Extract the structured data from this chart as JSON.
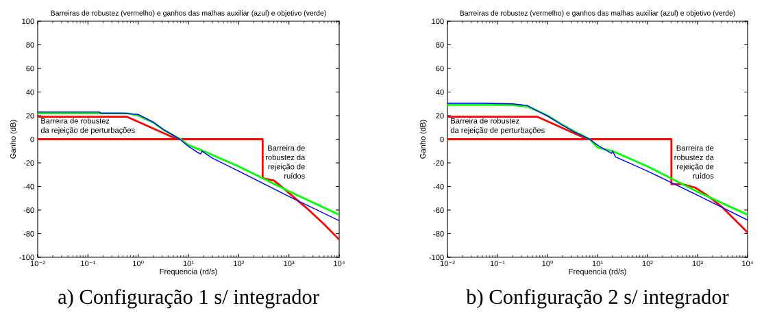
{
  "chart_data": [
    {
      "type": "line",
      "title": "Barreiras de robustez (vermelho) e ganhos das malhas auxiliar (azul) e objetivo (verde)",
      "xlabel": "Frequencia (rd/s)",
      "ylabel": "Ganho (dB)",
      "log": "x",
      "xlim": [
        0.01,
        10000
      ],
      "ylim": [
        -100,
        100
      ],
      "xticks": [
        {
          "value": 0.01,
          "label": "10⁻²"
        },
        {
          "value": 0.1,
          "label": "10⁻¹"
        },
        {
          "value": 1,
          "label": "10⁰"
        },
        {
          "value": 10,
          "label": "10¹"
        },
        {
          "value": 100,
          "label": "10²"
        },
        {
          "value": 1000,
          "label": "10³"
        },
        {
          "value": 10000,
          "label": "10⁴"
        }
      ],
      "yticks": [
        -100,
        -80,
        -60,
        -40,
        -20,
        0,
        20,
        40,
        60,
        80,
        100
      ],
      "grid": false,
      "legend": false,
      "series": [
        {
          "color": "#0000ff",
          "x": [
            0.01,
            0.17,
            0.18,
            0.5,
            1,
            2,
            3.16,
            6.7,
            10,
            15,
            17.5,
            18.5,
            21.6,
            30,
            100,
            1000,
            10000
          ],
          "values": [
            23,
            23,
            22,
            22,
            21,
            14.5,
            8.3,
            0,
            -6,
            -11,
            -12.5,
            -10,
            -12,
            -16,
            -27,
            -48.5,
            -69
          ]
        },
        {
          "color": "#00ff00",
          "x": [
            0.01,
            0.6,
            1,
            2,
            3.16,
            7,
            10,
            20,
            100,
            1000,
            10000
          ],
          "values": [
            22,
            22,
            20,
            14,
            8,
            0,
            -5,
            -10,
            -23,
            -44,
            -64
          ]
        },
        {
          "color": "#ff0000",
          "x": [
            0.01,
            0.6,
            6
          ],
          "values": [
            19,
            19,
            0
          ]
        },
        {
          "color": "#ff0000",
          "x": [
            0.01,
            300,
            300,
            500,
            800,
            1600,
            2500,
            5000,
            10000
          ],
          "values": [
            0,
            0,
            -33,
            -35,
            -42,
            -53,
            -60,
            -72,
            -85
          ]
        }
      ],
      "annotations": [
        "Barreira de robustez\nda rejeição de perturbações",
        "Barreira de\nrobustez da\nrejeição de\nruídos",
        "a) Configuração 1 s/ integrador"
      ]
    },
    {
      "type": "line",
      "title": "Barreiras de robustez (vermelho) e ganhos das malhas auxiliar (azul) e objetivo (verde)",
      "xlabel": "Frequencia (rd/s)",
      "ylabel": "Ganho (dB)",
      "log": "x",
      "xlim": [
        0.01,
        10000
      ],
      "ylim": [
        -100,
        100
      ],
      "xticks": [
        {
          "value": 0.01,
          "label": "10⁻²"
        },
        {
          "value": 0.1,
          "label": "10⁻¹"
        },
        {
          "value": 1,
          "label": "10⁰"
        },
        {
          "value": 10,
          "label": "10¹"
        },
        {
          "value": 100,
          "label": "10²"
        },
        {
          "value": 1000,
          "label": "10³"
        },
        {
          "value": 10000,
          "label": "10⁴"
        }
      ],
      "yticks": [
        -100,
        -80,
        -60,
        -40,
        -20,
        0,
        20,
        40,
        60,
        80,
        100
      ],
      "grid": false,
      "legend": false,
      "series": [
        {
          "color": "#0000ff",
          "x": [
            0.01,
            0.05,
            0.2,
            0.4,
            0.63,
            1,
            1.9,
            3.5,
            7,
            10,
            19,
            20,
            23,
            100,
            1000,
            10000
          ],
          "values": [
            30.5,
            30.5,
            30,
            28.5,
            24,
            19.7,
            12.4,
            6,
            0,
            -5,
            -12,
            -10,
            -15,
            -27,
            -47.5,
            -68.5
          ]
        },
        {
          "color": "#00ff00",
          "x": [
            0.01,
            0.2,
            0.4,
            0.63,
            1,
            1.9,
            3.5,
            7,
            10,
            20,
            100,
            1000,
            10000
          ],
          "values": [
            29,
            29,
            27.5,
            24,
            20,
            12.8,
            6.5,
            0,
            -7,
            -10,
            -23,
            -44.5,
            -64
          ]
        },
        {
          "color": "#ff0000",
          "x": [
            0.01,
            0.63,
            6.3
          ],
          "values": [
            19,
            19,
            0
          ]
        },
        {
          "color": "#ff0000",
          "x": [
            0.01,
            300,
            300,
            500,
            900,
            1500,
            3000,
            10000
          ],
          "values": [
            0,
            0,
            -38,
            -38,
            -41,
            -47,
            -57,
            -79
          ]
        }
      ],
      "annotations": [
        "Barreira de robustez\nda rejeição de perturbações",
        "Barreira de\nrobustez da\nrejeição de\nruídos",
        "b) Configuração 2 s/ integrador"
      ]
    }
  ]
}
